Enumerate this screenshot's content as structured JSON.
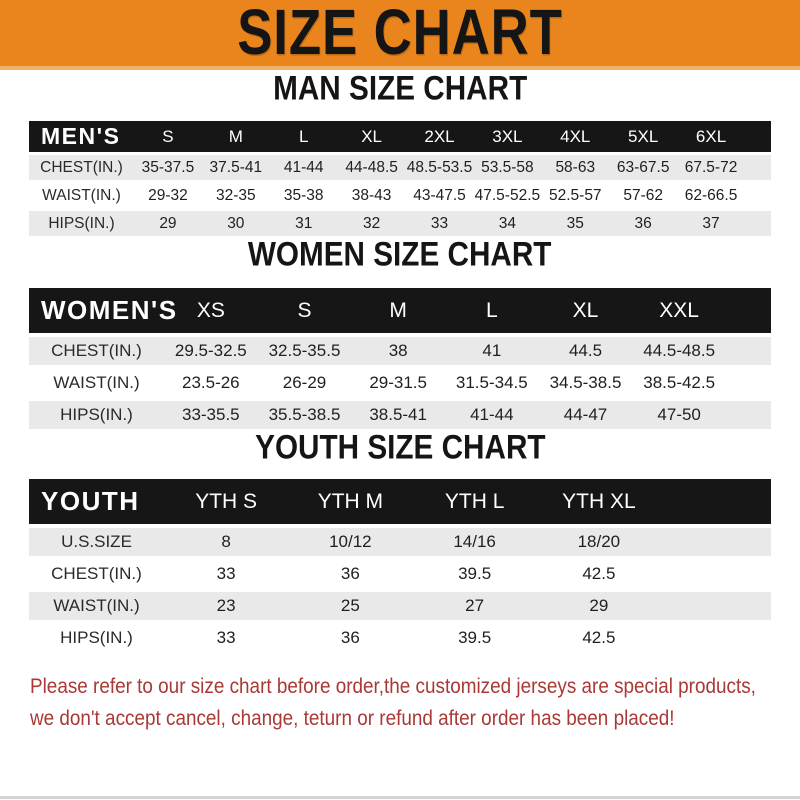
{
  "banner": {
    "title": "SIZE CHART"
  },
  "men": {
    "heading": "MAN SIZE CHART",
    "label": "MEN'S",
    "sizes": [
      "S",
      "M",
      "L",
      "XL",
      "2XL",
      "3XL",
      "4XL",
      "5XL",
      "6XL"
    ],
    "rows": [
      {
        "label": "CHEST(IN.)",
        "values": [
          "35-37.5",
          "37.5-41",
          "41-44",
          "44-48.5",
          "48.5-53.5",
          "53.5-58",
          "58-63",
          "63-67.5",
          "67.5-72"
        ]
      },
      {
        "label": "WAIST(IN.)",
        "values": [
          "29-32",
          "32-35",
          "35-38",
          "38-43",
          "43-47.5",
          "47.5-52.5",
          "52.5-57",
          "57-62",
          "62-66.5"
        ]
      },
      {
        "label": "HIPS(IN.)",
        "values": [
          "29",
          "30",
          "31",
          "32",
          "33",
          "34",
          "35",
          "36",
          "37"
        ]
      }
    ]
  },
  "women": {
    "heading": "WOMEN SIZE CHART",
    "label": "WOMEN'S",
    "sizes": [
      "XS",
      "S",
      "M",
      "L",
      "XL",
      "XXL"
    ],
    "rows": [
      {
        "label": "CHEST(IN.)",
        "values": [
          "29.5-32.5",
          "32.5-35.5",
          "38",
          "41",
          "44.5",
          "44.5-48.5"
        ]
      },
      {
        "label": "WAIST(IN.)",
        "values": [
          "23.5-26",
          "26-29",
          "29-31.5",
          "31.5-34.5",
          "34.5-38.5",
          "38.5-42.5"
        ]
      },
      {
        "label": "HIPS(IN.)",
        "values": [
          "33-35.5",
          "35.5-38.5",
          "38.5-41",
          "41-44",
          "44-47",
          "47-50"
        ]
      }
    ]
  },
  "youth": {
    "heading": "YOUTH SIZE CHART",
    "label": "YOUTH",
    "sizes": [
      "YTH S",
      "YTH M",
      "YTH L",
      "YTH XL"
    ],
    "rows": [
      {
        "label": "U.S.SIZE",
        "values": [
          "8",
          "10/12",
          "14/16",
          "18/20"
        ]
      },
      {
        "label": "CHEST(IN.)",
        "values": [
          "33",
          "36",
          "39.5",
          "42.5"
        ]
      },
      {
        "label": "WAIST(IN.)",
        "values": [
          "23",
          "25",
          "27",
          "29"
        ]
      },
      {
        "label": "HIPS(IN.)",
        "values": [
          "33",
          "36",
          "39.5",
          "42.5"
        ]
      }
    ]
  },
  "disclaimer": {
    "line1": "Please refer to our size chart before order,the customized jerseys are special products,",
    "line2": "we don't accept cancel, change, teturn or refund after order has been placed!"
  },
  "colors": {
    "banner_orange": "#EA851D",
    "bar_black": "#161616",
    "row_gray": "#E9E9E9",
    "disclaimer_red": "#A93936"
  }
}
